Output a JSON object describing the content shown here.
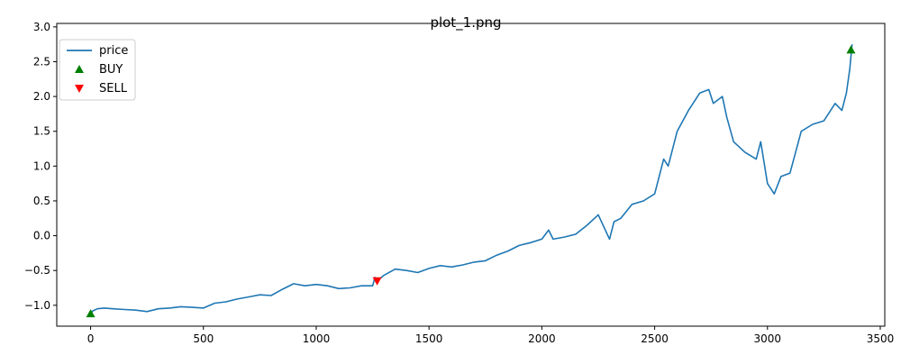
{
  "chart_data": {
    "type": "line",
    "title": "plot_1.png",
    "xlabel": "",
    "ylabel": "",
    "xlim": [
      -150,
      3520
    ],
    "ylim": [
      -1.3,
      3.05
    ],
    "x_ticks": [
      0,
      500,
      1000,
      1500,
      2000,
      2500,
      3000,
      3500
    ],
    "x_tick_labels": [
      "0",
      "500",
      "1000",
      "1500",
      "2000",
      "2500",
      "3000",
      "3500"
    ],
    "y_ticks": [
      -1.0,
      -0.5,
      0.0,
      0.5,
      1.0,
      1.5,
      2.0,
      2.5,
      3.0
    ],
    "y_tick_labels": [
      "−1.0",
      "−0.5",
      "0.0",
      "0.5",
      "1.0",
      "1.5",
      "2.0",
      "2.5",
      "3.0"
    ],
    "grid": false,
    "legend": {
      "placement": "top-left",
      "entries": [
        {
          "label": "price",
          "kind": "line",
          "color": "#1f77b4"
        },
        {
          "label": "BUY",
          "kind": "marker-up",
          "color": "#008000"
        },
        {
          "label": "SELL",
          "kind": "marker-down",
          "color": "#ff0000"
        }
      ]
    },
    "series": [
      {
        "name": "price",
        "color": "#1f77b4",
        "x": [
          0,
          10,
          30,
          60,
          100,
          150,
          200,
          250,
          300,
          350,
          400,
          450,
          500,
          550,
          600,
          650,
          700,
          750,
          800,
          850,
          900,
          950,
          1000,
          1050,
          1100,
          1150,
          1200,
          1250,
          1260,
          1270,
          1300,
          1350,
          1400,
          1450,
          1500,
          1550,
          1600,
          1650,
          1700,
          1750,
          1800,
          1850,
          1900,
          1950,
          2000,
          2030,
          2050,
          2100,
          2150,
          2200,
          2250,
          2300,
          2320,
          2350,
          2400,
          2450,
          2500,
          2540,
          2560,
          2600,
          2650,
          2700,
          2740,
          2760,
          2800,
          2820,
          2850,
          2900,
          2950,
          2970,
          3000,
          3030,
          3060,
          3100,
          3150,
          3200,
          3250,
          3300,
          3330,
          3350,
          3365,
          3375
        ],
        "y": [
          -1.12,
          -1.08,
          -1.05,
          -1.04,
          -1.05,
          -1.06,
          -1.07,
          -1.09,
          -1.05,
          -1.04,
          -1.02,
          -1.03,
          -1.04,
          -0.97,
          -0.95,
          -0.91,
          -0.88,
          -0.85,
          -0.86,
          -0.77,
          -0.69,
          -0.72,
          -0.7,
          -0.72,
          -0.76,
          -0.75,
          -0.72,
          -0.72,
          -0.6,
          -0.65,
          -0.57,
          -0.48,
          -0.5,
          -0.53,
          -0.47,
          -0.43,
          -0.45,
          -0.42,
          -0.38,
          -0.36,
          -0.28,
          -0.22,
          -0.14,
          -0.1,
          -0.05,
          0.08,
          -0.05,
          -0.02,
          0.02,
          0.15,
          0.3,
          -0.05,
          0.2,
          0.25,
          0.45,
          0.5,
          0.6,
          1.1,
          1.0,
          1.5,
          1.8,
          2.05,
          2.1,
          1.9,
          2.0,
          1.7,
          1.35,
          1.2,
          1.1,
          1.35,
          0.75,
          0.6,
          0.85,
          0.9,
          1.5,
          1.6,
          1.65,
          1.9,
          1.8,
          2.05,
          2.4,
          2.75
        ]
      }
    ],
    "markers": [
      {
        "name": "BUY",
        "shape": "triangle-up",
        "color": "#008000",
        "points": [
          {
            "x": 0,
            "y": -1.12
          },
          {
            "x": 3370,
            "y": 2.67
          }
        ]
      },
      {
        "name": "SELL",
        "shape": "triangle-down",
        "color": "#ff0000",
        "points": [
          {
            "x": 1270,
            "y": -0.65
          }
        ]
      }
    ]
  }
}
